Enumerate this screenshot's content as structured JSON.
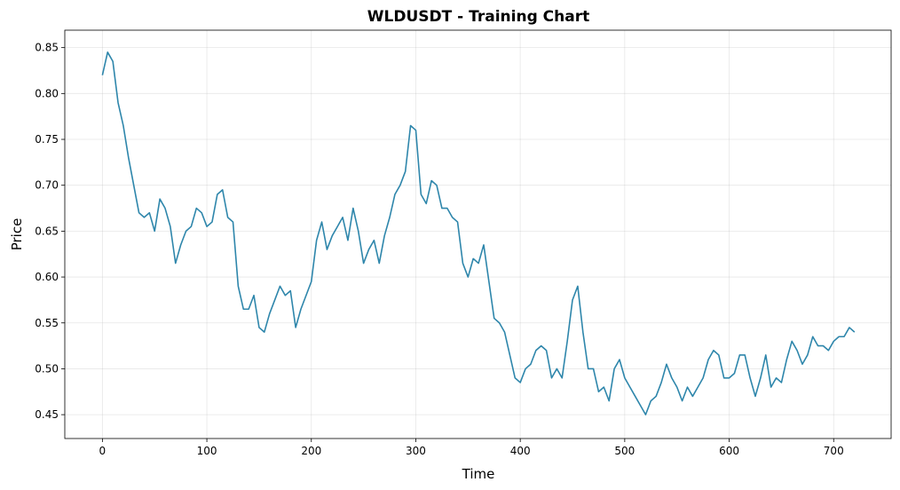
{
  "chart_data": {
    "type": "line",
    "title": "WLDUSDT - Training Chart",
    "x_label": "Time",
    "y_label": "Price",
    "x": [
      0,
      5,
      10,
      15,
      20,
      25,
      30,
      35,
      40,
      45,
      50,
      55,
      60,
      65,
      70,
      75,
      80,
      85,
      90,
      95,
      100,
      105,
      110,
      115,
      120,
      125,
      130,
      135,
      140,
      145,
      150,
      155,
      160,
      165,
      170,
      175,
      180,
      185,
      190,
      195,
      200,
      205,
      210,
      215,
      220,
      225,
      230,
      235,
      240,
      245,
      250,
      255,
      260,
      265,
      270,
      275,
      280,
      285,
      290,
      295,
      300,
      305,
      310,
      315,
      320,
      325,
      330,
      335,
      340,
      345,
      350,
      355,
      360,
      365,
      370,
      375,
      380,
      385,
      390,
      395,
      400,
      405,
      410,
      415,
      420,
      425,
      430,
      435,
      440,
      445,
      450,
      455,
      460,
      465,
      470,
      475,
      480,
      485,
      490,
      495,
      500,
      505,
      510,
      515,
      520,
      525,
      530,
      535,
      540,
      545,
      550,
      555,
      560,
      565,
      570,
      575,
      580,
      585,
      590,
      595,
      600,
      605,
      610,
      615,
      620,
      625,
      630,
      635,
      640,
      645,
      650,
      655,
      660,
      665,
      670,
      675,
      680,
      685,
      690,
      695,
      700,
      705,
      710,
      715,
      720
    ],
    "values": [
      0.82,
      0.845,
      0.835,
      0.79,
      0.765,
      0.73,
      0.7,
      0.67,
      0.665,
      0.67,
      0.65,
      0.685,
      0.675,
      0.655,
      0.615,
      0.635,
      0.65,
      0.655,
      0.675,
      0.67,
      0.655,
      0.66,
      0.69,
      0.695,
      0.665,
      0.66,
      0.59,
      0.565,
      0.565,
      0.58,
      0.545,
      0.54,
      0.56,
      0.575,
      0.59,
      0.58,
      0.585,
      0.545,
      0.565,
      0.58,
      0.595,
      0.64,
      0.66,
      0.63,
      0.645,
      0.655,
      0.665,
      0.64,
      0.675,
      0.65,
      0.615,
      0.63,
      0.64,
      0.615,
      0.645,
      0.665,
      0.69,
      0.7,
      0.715,
      0.765,
      0.76,
      0.69,
      0.68,
      0.705,
      0.7,
      0.675,
      0.675,
      0.665,
      0.66,
      0.615,
      0.6,
      0.62,
      0.615,
      0.635,
      0.595,
      0.555,
      0.55,
      0.54,
      0.515,
      0.49,
      0.485,
      0.5,
      0.505,
      0.52,
      0.525,
      0.52,
      0.49,
      0.5,
      0.49,
      0.53,
      0.575,
      0.59,
      0.54,
      0.5,
      0.5,
      0.475,
      0.48,
      0.465,
      0.5,
      0.51,
      0.49,
      0.48,
      0.47,
      0.46,
      0.45,
      0.465,
      0.47,
      0.485,
      0.505,
      0.49,
      0.48,
      0.465,
      0.48,
      0.47,
      0.48,
      0.49,
      0.51,
      0.52,
      0.515,
      0.49,
      0.49,
      0.495,
      0.515,
      0.515,
      0.49,
      0.47,
      0.49,
      0.515,
      0.48,
      0.49,
      0.485,
      0.51,
      0.53,
      0.52,
      0.505,
      0.515,
      0.535,
      0.525,
      0.525,
      0.52,
      0.53,
      0.535,
      0.535,
      0.545,
      0.54
    ],
    "color": "#2e86ab",
    "xlim": [
      -36,
      755
    ],
    "ylim": [
      0.424,
      0.869
    ],
    "xticks": [
      0,
      100,
      200,
      300,
      400,
      500,
      600,
      700
    ],
    "yticks": [
      0.45,
      {
        "value": 0.5,
        "label": "0.50"
      },
      0.55,
      {
        "value": 0.6,
        "label": "0.60"
      },
      0.65,
      {
        "value": 0.7,
        "label": "0.70"
      },
      0.75,
      {
        "value": 0.8,
        "label": "0.80"
      },
      0.85
    ],
    "grid": true
  }
}
